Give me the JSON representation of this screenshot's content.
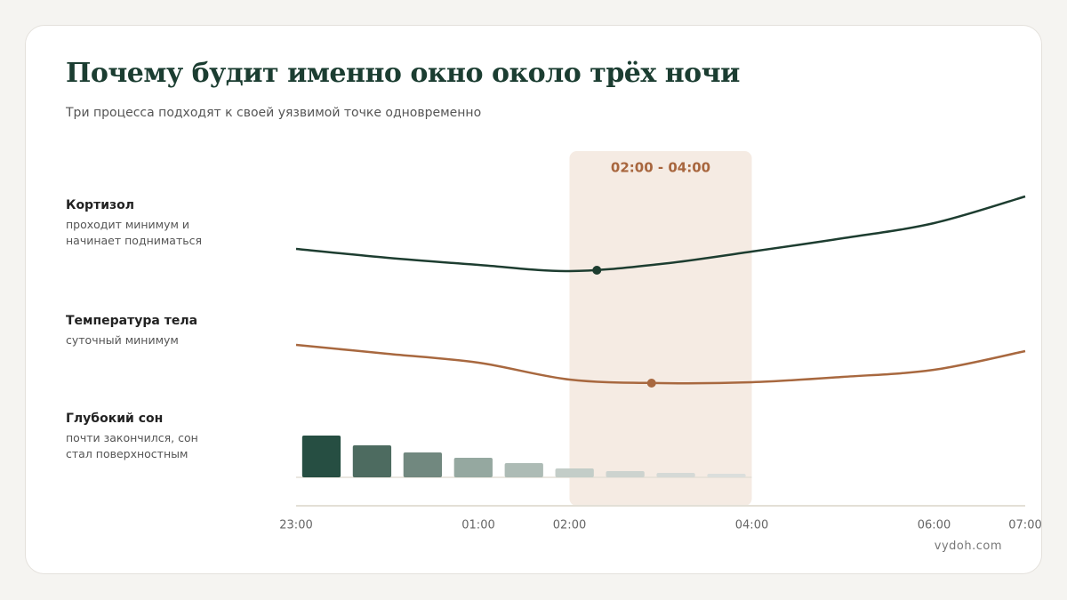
{
  "chart_data": {
    "type": "lanes",
    "title": "Почему будит именно окно около трёх ночи",
    "subtitle": "Три процесса подходят к своей уязвимой точке одновременно",
    "xlim": [
      23,
      31
    ],
    "xticks": [
      {
        "value": 23,
        "label": "23:00"
      },
      {
        "value": 25,
        "label": "01:00"
      },
      {
        "value": 26,
        "label": "02:00"
      },
      {
        "value": 28,
        "label": "04:00"
      },
      {
        "value": 30,
        "label": "06:00"
      },
      {
        "value": 31,
        "label": "07:00"
      }
    ],
    "highlight": {
      "from": 26,
      "to": 28,
      "label": "02:00 - 04:00"
    },
    "lanes": [
      {
        "kind": "line",
        "name": "Кортизол",
        "note": "проходит минимум и начинает подниматься",
        "color": "#1d3d30",
        "ylim": [
          0,
          110
        ],
        "x": [
          23,
          24,
          25,
          26,
          27,
          28,
          29,
          30,
          31
        ],
        "values": [
          40,
          30,
          22,
          15,
          23,
          37,
          52,
          69,
          99
        ],
        "marker": {
          "x": 26.3,
          "value": 16
        }
      },
      {
        "kind": "line",
        "name": "Температура тела",
        "note": "суточный минимум",
        "color": "#a8683f",
        "ylim": [
          0,
          110
        ],
        "x": [
          23,
          24,
          25,
          26,
          27,
          28,
          29,
          30,
          31
        ],
        "values": [
          52,
          42,
          32,
          13,
          9,
          10,
          16,
          24,
          45
        ],
        "marker": {
          "x": 26.9,
          "value": 9
        }
      },
      {
        "kind": "bar",
        "name": "Глубокий сон",
        "note": "почти закончился, сон стал поверхностным",
        "values": [
          47,
          36,
          28,
          22,
          16,
          10,
          7,
          5,
          4
        ],
        "colors": [
          "#264e42",
          "#4d6b60",
          "#71887f",
          "#95a8a0",
          "#adbbb5",
          "#c3cdc8",
          "#cdd3cf",
          "#d5d9d6",
          "#dbdedc"
        ]
      }
    ],
    "source": "vydoh.com"
  }
}
